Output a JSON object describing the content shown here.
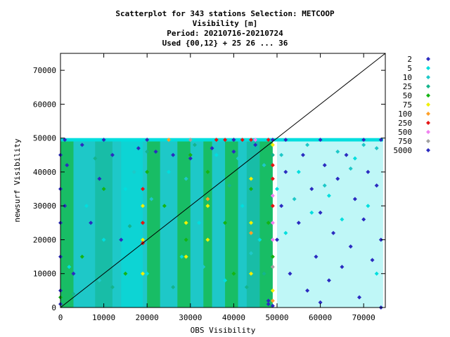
{
  "chart_data": {
    "type": "scatter",
    "title": [
      "Scatterplot for  343 stations Selection: METCOOP",
      "Visibility [m]",
      "Period: 20210716-20210724",
      "Used {00,12} + 25 26 ... 36"
    ],
    "xlabel": "OBS Visibility",
    "ylabel": "newsurf Visibility",
    "xlim": [
      0,
      75000
    ],
    "ylim": [
      0,
      75000
    ],
    "x_ticks": [
      0,
      10000,
      20000,
      30000,
      40000,
      50000,
      60000,
      70000
    ],
    "y_ticks": [
      0,
      10000,
      20000,
      30000,
      40000,
      50000,
      60000,
      70000
    ],
    "grid": false,
    "legend_position": "right",
    "diagonal_line": true,
    "legend": [
      {
        "label": "2",
        "color": "#2b2bc0"
      },
      {
        "label": "5",
        "color": "#00dede"
      },
      {
        "label": "10",
        "color": "#1ec8c8"
      },
      {
        "label": "25",
        "color": "#14b48c"
      },
      {
        "label": "50",
        "color": "#14b414"
      },
      {
        "label": "75",
        "color": "#f0f000"
      },
      {
        "label": "100",
        "color": "#ffa028"
      },
      {
        "label": "250",
        "color": "#e61414"
      },
      {
        "label": "500",
        "color": "#f080f0"
      },
      {
        "label": "750",
        "color": "#a0a0a0"
      },
      {
        "label": "5000",
        "color": "#2b2bc0"
      }
    ],
    "series": [
      {
        "name": "2",
        "points": [
          [
            0,
            1000
          ],
          [
            0,
            5000
          ],
          [
            0,
            15000
          ],
          [
            0,
            25000
          ],
          [
            0,
            35000
          ],
          [
            0,
            45000
          ],
          [
            1000,
            30000
          ],
          [
            1500,
            42000
          ],
          [
            3000,
            10000
          ],
          [
            5000,
            48000
          ],
          [
            7000,
            25000
          ],
          [
            9000,
            38000
          ],
          [
            12000,
            45000
          ],
          [
            14000,
            20000
          ],
          [
            18000,
            47000
          ],
          [
            22000,
            46000
          ],
          [
            26000,
            45000
          ],
          [
            30000,
            44000
          ],
          [
            35000,
            47000
          ],
          [
            40000,
            46000
          ],
          [
            45000,
            48000
          ],
          [
            48000,
            2000
          ],
          [
            48000,
            1000
          ],
          [
            49000,
            500
          ],
          [
            50000,
            20000
          ],
          [
            51000,
            30000
          ],
          [
            52000,
            40000
          ],
          [
            53000,
            10000
          ],
          [
            55000,
            25000
          ],
          [
            56000,
            45000
          ],
          [
            57000,
            5000
          ],
          [
            58000,
            35000
          ],
          [
            59000,
            15000
          ],
          [
            60000,
            28000
          ],
          [
            61000,
            42000
          ],
          [
            62000,
            8000
          ],
          [
            63000,
            22000
          ],
          [
            64000,
            38000
          ],
          [
            65000,
            12000
          ],
          [
            66000,
            45000
          ],
          [
            67000,
            18000
          ],
          [
            68000,
            32000
          ],
          [
            69000,
            3000
          ],
          [
            70000,
            26000
          ],
          [
            71000,
            40000
          ],
          [
            72000,
            14000
          ],
          [
            73000,
            36000
          ],
          [
            74000,
            20000
          ],
          [
            74000,
            0
          ],
          [
            60000,
            1500
          ]
        ]
      },
      {
        "name": "5",
        "points": [
          [
            2000,
            12000
          ],
          [
            6000,
            30000
          ],
          [
            10000,
            20000
          ],
          [
            15000,
            35000
          ],
          [
            20000,
            10000
          ],
          [
            25000,
            40000
          ],
          [
            28000,
            15000
          ],
          [
            32000,
            25000
          ],
          [
            36000,
            45000
          ],
          [
            38000,
            8000
          ],
          [
            42000,
            30000
          ],
          [
            46000,
            20000
          ],
          [
            50000,
            35000
          ],
          [
            52000,
            22000
          ],
          [
            55000,
            40000
          ],
          [
            58000,
            28000
          ],
          [
            62000,
            33000
          ],
          [
            65000,
            26000
          ],
          [
            68000,
            44000
          ],
          [
            71000,
            30000
          ],
          [
            73000,
            10000
          ]
        ]
      },
      {
        "name": "10",
        "points": [
          [
            4000,
            18000
          ],
          [
            9000,
            8000
          ],
          [
            13000,
            28000
          ],
          [
            17000,
            40000
          ],
          [
            21000,
            32000
          ],
          [
            24000,
            22000
          ],
          [
            29000,
            38000
          ],
          [
            33000,
            12000
          ],
          [
            37000,
            30000
          ],
          [
            41000,
            44000
          ],
          [
            44000,
            16000
          ],
          [
            47000,
            42000
          ],
          [
            51000,
            45000
          ],
          [
            54000,
            32000
          ],
          [
            57000,
            48000
          ],
          [
            61000,
            36000
          ],
          [
            64000,
            46000
          ],
          [
            67000,
            41000
          ],
          [
            70000,
            48000
          ],
          [
            73000,
            47000
          ]
        ]
      },
      {
        "name": "25",
        "points": [
          [
            3000,
            4000
          ],
          [
            8000,
            44000
          ],
          [
            12000,
            6000
          ],
          [
            16000,
            24000
          ],
          [
            20000,
            46000
          ],
          [
            26000,
            6000
          ],
          [
            31000,
            48000
          ],
          [
            34000,
            20000
          ],
          [
            39000,
            36000
          ],
          [
            43000,
            6000
          ],
          [
            47000,
            10000
          ],
          [
            49000,
            45000
          ]
        ]
      },
      {
        "name": "50",
        "points": [
          [
            0,
            3000
          ],
          [
            5000,
            15000
          ],
          [
            10000,
            35000
          ],
          [
            15000,
            10000
          ],
          [
            19000,
            25000
          ],
          [
            20000,
            40000
          ],
          [
            24000,
            30000
          ],
          [
            29000,
            20000
          ],
          [
            30000,
            45000
          ],
          [
            34000,
            40000
          ],
          [
            38000,
            25000
          ],
          [
            40000,
            10000
          ],
          [
            44000,
            35000
          ],
          [
            48000,
            25000
          ],
          [
            49000,
            15000
          ]
        ]
      },
      {
        "name": "75",
        "points": [
          [
            19000,
            10000
          ],
          [
            19000,
            20000
          ],
          [
            19000,
            30000
          ],
          [
            29000,
            15000
          ],
          [
            29000,
            25000
          ],
          [
            34000,
            20000
          ],
          [
            34000,
            30000
          ],
          [
            44000,
            10000
          ],
          [
            44000,
            25000
          ],
          [
            44000,
            38000
          ],
          [
            49000,
            5000
          ],
          [
            49000,
            48000
          ]
        ]
      },
      {
        "name": "100",
        "points": [
          [
            20000,
            49500
          ],
          [
            25000,
            49500
          ],
          [
            30000,
            49500
          ],
          [
            34000,
            32000
          ],
          [
            44000,
            22000
          ],
          [
            49000,
            2000
          ]
        ]
      },
      {
        "name": "250",
        "points": [
          [
            19000,
            19000
          ],
          [
            19000,
            25000
          ],
          [
            19000,
            35000
          ],
          [
            36000,
            49500
          ],
          [
            38000,
            49500
          ],
          [
            40000,
            49500
          ],
          [
            42000,
            49500
          ],
          [
            44000,
            49500
          ],
          [
            48000,
            49500
          ],
          [
            49000,
            30000
          ],
          [
            49000,
            38000
          ],
          [
            49000,
            42000
          ]
        ]
      },
      {
        "name": "500",
        "points": [
          [
            49000,
            20000
          ],
          [
            49000,
            25000
          ],
          [
            49000,
            33000
          ],
          [
            45000,
            49500
          ]
        ]
      },
      {
        "name": "750",
        "points": [
          [
            49000,
            12000
          ],
          [
            30000,
            49500
          ]
        ]
      },
      {
        "name": "5000",
        "points": [
          [
            1000,
            49500
          ],
          [
            10000,
            49500
          ],
          [
            20000,
            49500
          ],
          [
            40000,
            49500
          ],
          [
            49000,
            49500
          ],
          [
            52000,
            49500
          ],
          [
            60000,
            49500
          ],
          [
            70000,
            49500
          ],
          [
            74000,
            49500
          ]
        ]
      }
    ]
  }
}
